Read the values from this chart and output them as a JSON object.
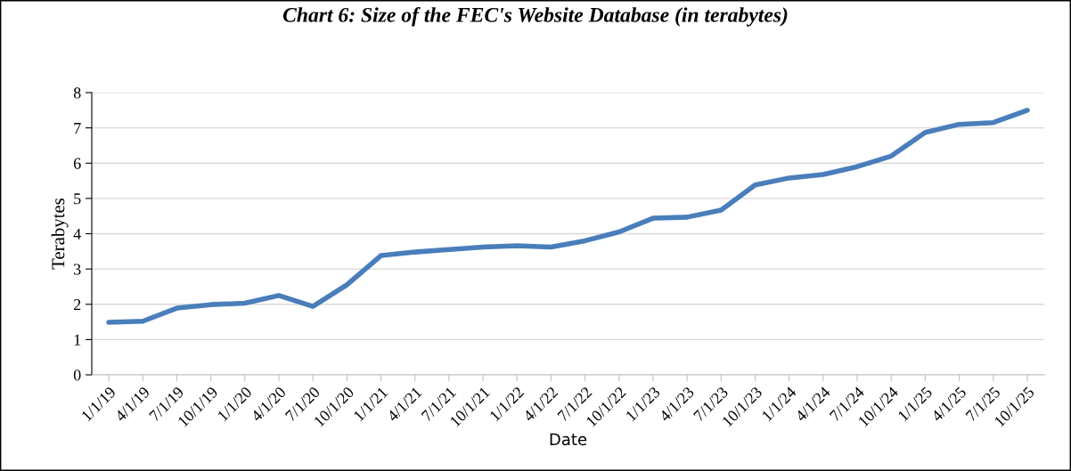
{
  "chart_data": {
    "type": "line",
    "title": "Chart 6: Size of the FEC's Website Database (in terabytes)",
    "xlabel": "Date",
    "ylabel": "Terabytes",
    "categories": [
      "1/1/19",
      "4/1/19",
      "7/1/19",
      "10/1/19",
      "1/1/20",
      "4/1/20",
      "7/1/20",
      "10/1/20",
      "1/1/21",
      "4/1/21",
      "7/1/21",
      "10/1/21",
      "1/1/22",
      "4/1/22",
      "7/1/22",
      "10/1/22",
      "1/1/23",
      "4/1/23",
      "7/1/23",
      "10/1/23",
      "1/1/24",
      "4/1/24",
      "7/1/24",
      "10/1/24",
      "1/1/25",
      "4/1/25",
      "7/1/25",
      "10/1/25"
    ],
    "series": [
      {
        "color": "#4a7ebb",
        "values": [
          1.49,
          1.52,
          1.89,
          1.99,
          2.03,
          2.25,
          1.94,
          2.55,
          3.38,
          3.48,
          3.55,
          3.62,
          3.66,
          3.62,
          3.8,
          4.05,
          4.44,
          4.47,
          4.67,
          5.38,
          5.58,
          5.68,
          5.9,
          6.2,
          6.87,
          7.1,
          7.15,
          7.5
        ]
      }
    ],
    "ylim": [
      0,
      8
    ],
    "yticks": [
      0,
      1,
      2,
      3,
      4,
      5,
      6,
      7,
      8
    ],
    "grid": "y",
    "legend": false,
    "marker": "none",
    "line_style": "solid"
  }
}
